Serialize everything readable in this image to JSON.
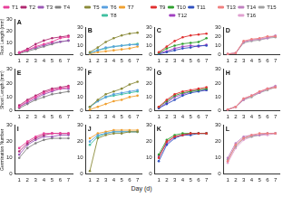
{
  "chart_data": [
    {
      "type": "line",
      "title": "A",
      "y_label": "Root Length (mm)",
      "legend": "top",
      "grid": false,
      "x": [
        1,
        2,
        3,
        4,
        5,
        6,
        7
      ],
      "xlim": [
        0.5,
        7.5
      ],
      "xticks": [
        1,
        2,
        3,
        4,
        5,
        6,
        7
      ],
      "ylim": [
        0,
        30
      ],
      "yticks": [
        0,
        10,
        20,
        30
      ],
      "series": [
        {
          "name": "T1",
          "color": "#e8409a",
          "marker": "circle",
          "line_style": "solid",
          "values": [
            2,
            4,
            7,
            9,
            11,
            14,
            15
          ]
        },
        {
          "name": "T2",
          "color": "#b02870",
          "marker": "circle",
          "line_style": "solid",
          "values": [
            2,
            5,
            9,
            12,
            14,
            15,
            16
          ]
        },
        {
          "name": "T3",
          "color": "#9b59b6",
          "marker": "circle",
          "line_style": "solid",
          "values": [
            2,
            4,
            6,
            8,
            10,
            11,
            12
          ]
        },
        {
          "name": "T4",
          "color": "#808080",
          "marker": "circle",
          "line_style": "solid",
          "values": [
            1,
            3,
            5,
            7,
            9,
            11,
            12
          ]
        }
      ]
    },
    {
      "type": "line",
      "title": "B",
      "legend": "top",
      "grid": false,
      "x": [
        1,
        2,
        3,
        4,
        5,
        6,
        7
      ],
      "xlim": [
        0.5,
        7.5
      ],
      "xticks": [
        1,
        2,
        3,
        4,
        5,
        6,
        7
      ],
      "ylim": [
        0,
        30
      ],
      "yticks": [
        0,
        10,
        20,
        30
      ],
      "series": [
        {
          "name": "T5",
          "color": "#8b8b3a",
          "marker": "circle",
          "line_style": "solid",
          "values": [
            3,
            8,
            14,
            18,
            21,
            23,
            24
          ]
        },
        {
          "name": "T6",
          "color": "#5aa0e0",
          "marker": "circle",
          "line_style": "solid",
          "values": [
            2,
            5,
            8,
            9,
            10,
            11,
            11
          ]
        },
        {
          "name": "T7",
          "color": "#f0a030",
          "marker": "circle",
          "line_style": "solid",
          "values": [
            1,
            3,
            4,
            5,
            6,
            7,
            9
          ]
        },
        {
          "name": "T8",
          "color": "#40c0a0",
          "marker": "circle",
          "line_style": "solid",
          "values": [
            2,
            5,
            7,
            9,
            10,
            11,
            12
          ]
        }
      ]
    },
    {
      "type": "line",
      "title": "C",
      "legend": "top",
      "grid": false,
      "x": [
        1,
        2,
        3,
        4,
        5,
        6,
        7
      ],
      "xlim": [
        0.5,
        7.5
      ],
      "xticks": [
        1,
        2,
        3,
        4,
        5,
        6,
        7
      ],
      "ylim": [
        0,
        30
      ],
      "yticks": [
        0,
        10,
        20,
        30
      ],
      "series": [
        {
          "name": "T9",
          "color": "#e03030",
          "marker": "circle",
          "line_style": "solid",
          "values": [
            3,
            9,
            15,
            19,
            21,
            22,
            23
          ]
        },
        {
          "name": "T10",
          "color": "#30a030",
          "marker": "circle",
          "line_style": "solid",
          "values": [
            2,
            7,
            10,
            12,
            13,
            14,
            18
          ]
        },
        {
          "name": "T11",
          "color": "#3050c0",
          "marker": "circle",
          "line_style": "solid",
          "values": [
            1,
            3,
            5,
            7,
            8,
            10,
            10
          ]
        },
        {
          "name": "T12",
          "color": "#a040c0",
          "marker": "circle",
          "line_style": "solid",
          "values": [
            2,
            4,
            7,
            9,
            10,
            9,
            11
          ]
        }
      ]
    },
    {
      "type": "line",
      "title": "D",
      "legend": "top",
      "grid": false,
      "x": [
        1,
        2,
        3,
        4,
        5,
        6,
        7
      ],
      "xlim": [
        0.5,
        7.5
      ],
      "xticks": [
        1,
        2,
        3,
        4,
        5,
        6,
        7
      ],
      "ylim": [
        0,
        30
      ],
      "yticks": [
        0,
        10,
        20,
        30
      ],
      "series": [
        {
          "name": "T13",
          "color": "#f08080",
          "marker": "circle",
          "line_style": "solid",
          "values": [
            1,
            2,
            15,
            17,
            18,
            20,
            20
          ]
        },
        {
          "name": "T14",
          "color": "#c080c0",
          "marker": "circle",
          "line_style": "solid",
          "values": [
            1,
            2,
            14,
            16,
            17,
            18,
            21
          ]
        },
        {
          "name": "T15",
          "color": "#a0a0a0",
          "marker": "circle",
          "line_style": "solid",
          "values": [
            1,
            2,
            13,
            15,
            16,
            18,
            19
          ]
        },
        {
          "name": "T16",
          "color": "#e0a0d0",
          "marker": "circle",
          "line_style": "solid",
          "values": [
            1,
            2,
            14,
            16,
            17,
            19,
            20
          ]
        }
      ]
    },
    {
      "type": "line",
      "title": "E",
      "y_label": "Shoot Length (mm)",
      "grid": false,
      "x": [
        1,
        2,
        3,
        4,
        5,
        6,
        7
      ],
      "xlim": [
        0.5,
        7.5
      ],
      "xticks": [
        1,
        2,
        3,
        4,
        5,
        6,
        7
      ],
      "ylim": [
        0,
        30
      ],
      "yticks": [
        0,
        10,
        20,
        30
      ],
      "series": [
        {
          "color": "#e8409a",
          "marker": "circle",
          "line_style": "solid",
          "values": [
            3,
            7,
            10,
            13,
            15,
            16,
            17
          ]
        },
        {
          "color": "#b02870",
          "marker": "circle",
          "line_style": "solid",
          "values": [
            4,
            8,
            11,
            14,
            16,
            17,
            18
          ]
        },
        {
          "color": "#9b59b6",
          "marker": "circle",
          "line_style": "solid",
          "values": [
            3,
            6,
            9,
            12,
            14,
            16,
            16
          ]
        },
        {
          "color": "#808080",
          "marker": "circle",
          "line_style": "solid",
          "values": [
            2,
            5,
            8,
            10,
            12,
            13,
            14
          ]
        }
      ]
    },
    {
      "type": "line",
      "title": "F",
      "grid": false,
      "x": [
        1,
        2,
        3,
        4,
        5,
        6,
        7
      ],
      "xlim": [
        0.5,
        7.5
      ],
      "xticks": [
        1,
        2,
        3,
        4,
        5,
        6,
        7
      ],
      "ylim": [
        0,
        30
      ],
      "yticks": [
        0,
        10,
        20,
        30
      ],
      "series": [
        {
          "color": "#8b8b3a",
          "marker": "circle",
          "line_style": "solid",
          "values": [
            3,
            8,
            12,
            14,
            16,
            19,
            21
          ]
        },
        {
          "color": "#5aa0e0",
          "marker": "circle",
          "line_style": "solid",
          "values": [
            3,
            7,
            10,
            12,
            13,
            14,
            15
          ]
        },
        {
          "color": "#f0a030",
          "marker": "circle",
          "line_style": "solid",
          "values": [
            1,
            3,
            5,
            7,
            8,
            10,
            11
          ]
        },
        {
          "color": "#40c0a0",
          "marker": "circle",
          "line_style": "solid",
          "values": [
            3,
            7,
            10,
            11,
            12,
            13,
            14
          ]
        }
      ]
    },
    {
      "type": "line",
      "title": "G",
      "grid": false,
      "x": [
        1,
        2,
        3,
        4,
        5,
        6,
        7
      ],
      "xlim": [
        0.5,
        7.5
      ],
      "xticks": [
        1,
        2,
        3,
        4,
        5,
        6,
        7
      ],
      "ylim": [
        0,
        30
      ],
      "yticks": [
        0,
        10,
        20,
        30
      ],
      "series": [
        {
          "color": "#e03030",
          "marker": "circle",
          "line_style": "solid",
          "values": [
            3,
            8,
            12,
            14,
            15,
            16,
            17
          ]
        },
        {
          "color": "#30a030",
          "marker": "circle",
          "line_style": "solid",
          "values": [
            3,
            7,
            11,
            13,
            14,
            15,
            16
          ]
        },
        {
          "color": "#3050c0",
          "marker": "circle",
          "line_style": "solid",
          "values": [
            2,
            5,
            8,
            11,
            13,
            14,
            15
          ]
        },
        {
          "color": "#a040c0",
          "marker": "circle",
          "line_style": "solid",
          "values": [
            2,
            6,
            10,
            12,
            14,
            15,
            15
          ]
        }
      ]
    },
    {
      "type": "line",
      "title": "H",
      "grid": false,
      "x": [
        1,
        2,
        3,
        4,
        5,
        6,
        7
      ],
      "xlim": [
        0.5,
        7.5
      ],
      "xticks": [
        1,
        2,
        3,
        4,
        5,
        6,
        7
      ],
      "ylim": [
        0,
        30
      ],
      "yticks": [
        0,
        10,
        20,
        30
      ],
      "series": [
        {
          "color": "#f08080",
          "marker": "circle",
          "line_style": "solid",
          "values": [
            1,
            3,
            9,
            11,
            14,
            16,
            17
          ]
        },
        {
          "color": "#c080c0",
          "marker": "circle",
          "line_style": "solid",
          "values": [
            1,
            3,
            8,
            11,
            13,
            16,
            18
          ]
        },
        {
          "color": "#a0a0a0",
          "marker": "circle",
          "line_style": "solid",
          "values": [
            1,
            3,
            8,
            10,
            13,
            15,
            17
          ]
        },
        {
          "color": "#e0a0d0",
          "marker": "circle",
          "line_style": "solid",
          "values": [
            1,
            3,
            9,
            11,
            14,
            16,
            17
          ]
        }
      ]
    },
    {
      "type": "line",
      "title": "I",
      "y_label": "Germination Number",
      "grid": false,
      "x": [
        1,
        2,
        3,
        4,
        5,
        6,
        7
      ],
      "xlim": [
        0.5,
        7.5
      ],
      "xticks": [
        1,
        2,
        3,
        4,
        5,
        6,
        7
      ],
      "ylim": [
        0,
        30
      ],
      "yticks": [
        0,
        10,
        20,
        30
      ],
      "series": [
        {
          "color": "#e8409a",
          "marker": "circle",
          "line_style": "solid",
          "values": [
            16,
            20,
            23,
            25,
            25,
            25,
            25
          ]
        },
        {
          "color": "#b02870",
          "marker": "circle",
          "line_style": "solid",
          "values": [
            14,
            19,
            22,
            24,
            25,
            25,
            25
          ]
        },
        {
          "color": "#9b59b6",
          "marker": "circle",
          "line_style": "solid",
          "values": [
            12,
            18,
            21,
            23,
            23,
            24,
            24
          ]
        },
        {
          "color": "#808080",
          "marker": "circle",
          "line_style": "solid",
          "values": [
            10,
            16,
            19,
            21,
            22,
            22,
            22
          ]
        }
      ]
    },
    {
      "type": "line",
      "title": "J",
      "grid": false,
      "x": [
        1,
        2,
        3,
        4,
        5,
        6,
        7
      ],
      "xlim": [
        0.5,
        7.5
      ],
      "xticks": [
        1,
        2,
        3,
        4,
        5,
        6,
        7
      ],
      "ylim": [
        0,
        30
      ],
      "yticks": [
        0,
        10,
        20,
        30
      ],
      "series": [
        {
          "color": "#8b8b3a",
          "marker": "circle",
          "line_style": "solid",
          "values": [
            2,
            22,
            24,
            25,
            25,
            26,
            26
          ]
        },
        {
          "color": "#5aa0e0",
          "marker": "circle",
          "line_style": "solid",
          "values": [
            20,
            24,
            25,
            26,
            26,
            26,
            26
          ]
        },
        {
          "color": "#f0a030",
          "marker": "circle",
          "line_style": "solid",
          "values": [
            22,
            25,
            26,
            27,
            27,
            27,
            27
          ]
        },
        {
          "color": "#40c0a0",
          "marker": "circle",
          "line_style": "solid",
          "values": [
            18,
            23,
            25,
            26,
            26,
            26,
            26
          ]
        }
      ]
    },
    {
      "type": "line",
      "title": "K",
      "grid": false,
      "x": [
        1,
        2,
        3,
        4,
        5,
        6,
        7
      ],
      "xlim": [
        0.5,
        7.5
      ],
      "xticks": [
        1,
        2,
        3,
        4,
        5,
        6,
        7
      ],
      "ylim": [
        0,
        30
      ],
      "yticks": [
        0,
        10,
        20,
        30
      ],
      "series": [
        {
          "color": "#e03030",
          "marker": "circle",
          "line_style": "solid",
          "values": [
            10,
            20,
            23,
            24,
            25,
            25,
            25
          ]
        },
        {
          "color": "#30a030",
          "marker": "circle",
          "line_style": "solid",
          "values": [
            12,
            21,
            24,
            25,
            25,
            25,
            25
          ]
        },
        {
          "color": "#3050c0",
          "marker": "circle",
          "line_style": "solid",
          "values": [
            8,
            18,
            22,
            24,
            24,
            25,
            25
          ]
        },
        {
          "color": "#a040c0",
          "marker": "circle",
          "line_style": "solid",
          "values": [
            11,
            19,
            23,
            24,
            25,
            25,
            25
          ]
        }
      ]
    },
    {
      "type": "line",
      "title": "L",
      "grid": false,
      "x": [
        1,
        2,
        3,
        4,
        5,
        6,
        7
      ],
      "xlim": [
        0.5,
        7.5
      ],
      "xticks": [
        1,
        2,
        3,
        4,
        5,
        6,
        7
      ],
      "ylim": [
        0,
        30
      ],
      "yticks": [
        0,
        10,
        20,
        30
      ],
      "series": [
        {
          "color": "#f08080",
          "marker": "circle",
          "line_style": "solid",
          "values": [
            8,
            18,
            22,
            24,
            25,
            25,
            25
          ]
        },
        {
          "color": "#c080c0",
          "marker": "circle",
          "line_style": "solid",
          "values": [
            10,
            19,
            23,
            24,
            24,
            25,
            25
          ]
        },
        {
          "color": "#a0a0a0",
          "marker": "circle",
          "line_style": "solid",
          "values": [
            9,
            17,
            22,
            23,
            24,
            25,
            25
          ]
        },
        {
          "color": "#e0a0d0",
          "marker": "circle",
          "line_style": "solid",
          "values": [
            7,
            16,
            21,
            23,
            24,
            24,
            25
          ]
        }
      ]
    }
  ],
  "figure": {
    "x_label": "Day (d)"
  }
}
